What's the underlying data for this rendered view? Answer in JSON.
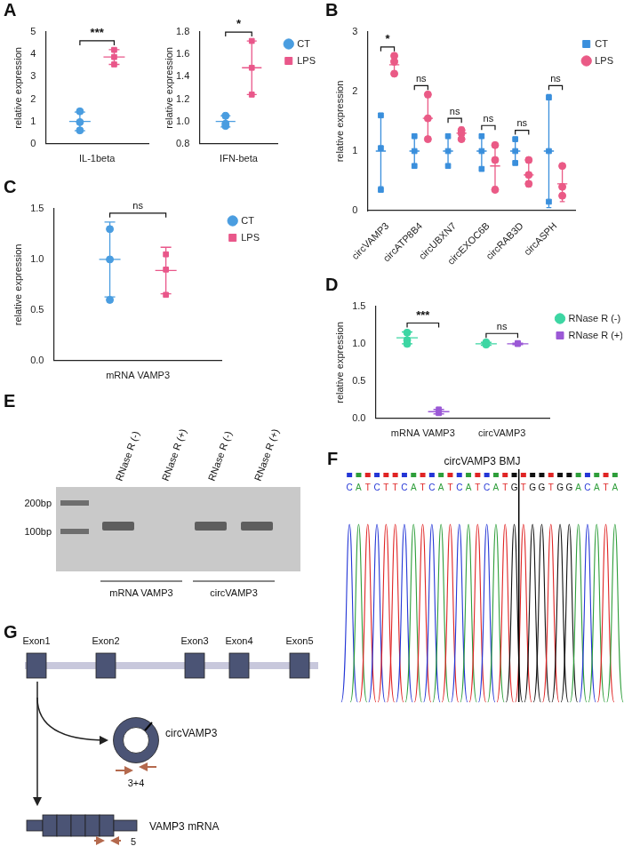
{
  "chart_data": [
    {
      "panel": "A",
      "type": "scatter",
      "y_label": "relative expression",
      "categories": [
        "IL-1beta"
      ],
      "ylim": [
        0,
        5
      ],
      "yticks": [
        0,
        1,
        2,
        3,
        4,
        5
      ],
      "grid": false,
      "annotations": [
        "***"
      ],
      "series": [
        {
          "name": "CT",
          "color": "#4a9de0",
          "marker": "circle",
          "values": [
            [
              1.45,
              0.97,
              0.6
            ]
          ],
          "mean": [
            1.0
          ],
          "error": [
            0.42
          ]
        },
        {
          "name": "LPS",
          "color": "#e9578a",
          "marker": "square",
          "values": [
            [
              4.2,
              3.88,
              3.55
            ]
          ],
          "mean": [
            3.88
          ],
          "error": [
            0.33
          ]
        }
      ]
    },
    {
      "type": "scatter",
      "y_label": "relative expression",
      "categories": [
        "IFN-beta"
      ],
      "ylim": [
        0.8,
        1.8
      ],
      "yticks": [
        0.8,
        {
          "value": 1,
          "label": "1.0"
        },
        1.2,
        1.4,
        1.6,
        1.8
      ],
      "grid": false,
      "legend": "right",
      "annotations": [
        "*"
      ],
      "series": [
        {
          "name": "CT",
          "color": "#4a9de0",
          "marker": "circle",
          "values": [
            [
              1.05,
              0.98,
              0.96
            ]
          ],
          "mean": [
            1.0
          ],
          "error": [
            0.05
          ]
        },
        {
          "name": "LPS",
          "color": "#e9578a",
          "marker": "square",
          "values": [
            [
              1.72,
              1.48,
              1.24
            ]
          ],
          "mean": [
            1.48
          ],
          "error": [
            0.24
          ]
        }
      ]
    },
    {
      "panel": "B",
      "type": "scatter",
      "y_label": "relative expression",
      "categories": [
        "circVAMP3",
        "circATP8B4",
        "circUBXN7",
        "circEXOC6B",
        "circRAB3D",
        "circASPH"
      ],
      "ylim": [
        0,
        3
      ],
      "yticks": [
        0,
        1,
        2,
        3
      ],
      "grid": false,
      "legend": "right",
      "annotations": [
        "*",
        "ns",
        "ns",
        "ns",
        "ns",
        "ns"
      ],
      "series": [
        {
          "name": "CT",
          "color": "#3a8fdc",
          "marker": "square",
          "values": [
            [
              1.6,
              1.05,
              0.35
            ],
            [
              1.25,
              1.0,
              0.75
            ],
            [
              1.25,
              1.0,
              0.75
            ],
            [
              1.25,
              1.0,
              0.7
            ],
            [
              1.2,
              1.0,
              0.8
            ],
            [
              1.9,
              1.0,
              0.15
            ]
          ],
          "mean": [
            1.0,
            1.0,
            1.0,
            1.0,
            1.0,
            1.0
          ],
          "error": [
            0.6,
            0.25,
            0.25,
            0.28,
            0.2,
            0.95
          ]
        },
        {
          "name": "LPS",
          "color": "#ea5a86",
          "marker": "circle",
          "values": [
            [
              2.6,
              2.5,
              2.3
            ],
            [
              1.95,
              1.55,
              1.2
            ],
            [
              1.35,
              1.3,
              1.2
            ],
            [
              1.1,
              0.85,
              0.35
            ],
            [
              0.85,
              0.6,
              0.45
            ],
            [
              0.75,
              0.4,
              0.25
            ]
          ],
          "mean": [
            2.45,
            1.55,
            1.3,
            0.75,
            0.6,
            0.45
          ],
          "error": [
            0.15,
            0.35,
            0.1,
            0.35,
            0.2,
            0.3
          ]
        }
      ]
    },
    {
      "panel": "C",
      "type": "scatter",
      "y_label": "relative expression",
      "categories": [
        "mRNA VAMP3"
      ],
      "ylim": [
        0,
        1.5
      ],
      "yticks": [
        {
          "value": 0,
          "label": "0.0"
        },
        0.5,
        {
          "value": 1,
          "label": "1.0"
        },
        1.5
      ],
      "grid": false,
      "legend": "right",
      "annotations": [
        "ns"
      ],
      "series": [
        {
          "name": "CT",
          "color": "#4a9de0",
          "marker": "circle",
          "values": [
            [
              1.3,
              1.0,
              0.6
            ]
          ],
          "mean": [
            1.0
          ],
          "error": [
            0.37
          ]
        },
        {
          "name": "LPS",
          "color": "#e9578a",
          "marker": "square",
          "values": [
            [
              1.05,
              0.9,
              0.65
            ]
          ],
          "mean": [
            0.89
          ],
          "error": [
            0.23
          ]
        }
      ]
    },
    {
      "panel": "D",
      "type": "scatter",
      "y_label": "relative expression",
      "categories": [
        "mRNA VAMP3",
        "circVAMP3"
      ],
      "ylim": [
        0,
        1.5
      ],
      "yticks": [
        {
          "value": 0,
          "label": "0.0"
        },
        0.5,
        {
          "value": 1,
          "label": "1.0"
        },
        1.5
      ],
      "grid": false,
      "legend": "right",
      "annotations": [
        "***",
        "ns"
      ],
      "series": [
        {
          "name": "RNase R (-)",
          "color": "#3dd6a3",
          "marker": "circle",
          "values": [
            [
              1.15,
              1.05,
              1.0
            ],
            [
              1.02,
              1.0,
              0.99
            ]
          ],
          "mean": [
            1.08,
            1.0
          ],
          "error": [
            0.08,
            0.02
          ]
        },
        {
          "name": "RNase R (+)",
          "color": "#9b59d6",
          "marker": "square",
          "values": [
            [
              0.12,
              0.08,
              0.07
            ],
            [
              1.01,
              1.0,
              1.0
            ]
          ],
          "mean": [
            0.09,
            1.0
          ],
          "error": [
            0.03,
            0.01
          ]
        }
      ]
    }
  ],
  "gel": {
    "panel": "E",
    "ladder": [
      "200bp",
      "100bp"
    ],
    "lanes": [
      {
        "label": "RNase R (-)",
        "band": true
      },
      {
        "label": "RNase R (+)",
        "band": false
      },
      {
        "label": "RNase R (-)",
        "band": true
      },
      {
        "label": "RNase R (+)",
        "band": true
      }
    ],
    "groups": [
      "mRNA VAMP3",
      "circVAMP3"
    ]
  },
  "chromatogram": {
    "panel": "F",
    "title": "circVAMP3 BMJ",
    "sequence": [
      "CATCTTCATCATCATCATG",
      "TGGTGGACATA"
    ]
  },
  "diagram": {
    "panel": "G",
    "exons": [
      "Exon1",
      "Exon2",
      "Exon3",
      "Exon4",
      "Exon5"
    ],
    "circ_label": "circVAMP3",
    "circ_primer": "3+4",
    "mrna_label": "VAMP3 mRNA",
    "mrna_primer": "5"
  }
}
